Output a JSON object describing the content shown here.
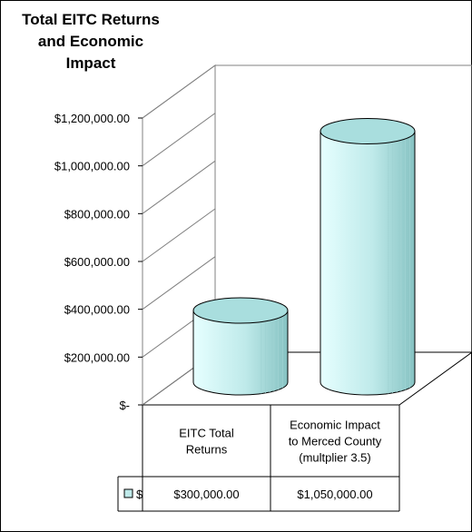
{
  "chart_data": {
    "type": "bar",
    "title_lines": [
      "Total EITC Returns",
      "and Economic",
      "Impact"
    ],
    "categories": [
      [
        "EITC Total",
        "Returns"
      ],
      [
        "Economic Impact",
        "to Merced County",
        "(multplier 3.5)"
      ]
    ],
    "series": [
      {
        "name": "$",
        "values": [
          300000,
          1050000
        ],
        "value_labels": [
          "$300,000.00",
          "$1,050,000.00"
        ]
      }
    ],
    "ylim": [
      0,
      1200000
    ],
    "yticks": [
      "$-",
      "$200,000.00",
      "$400,000.00",
      "$600,000.00",
      "$800,000.00",
      "$1,000,000.00",
      "$1,200,000.00"
    ],
    "grid": false,
    "legend": "data-table",
    "bar_color": "#bfe9e9"
  }
}
